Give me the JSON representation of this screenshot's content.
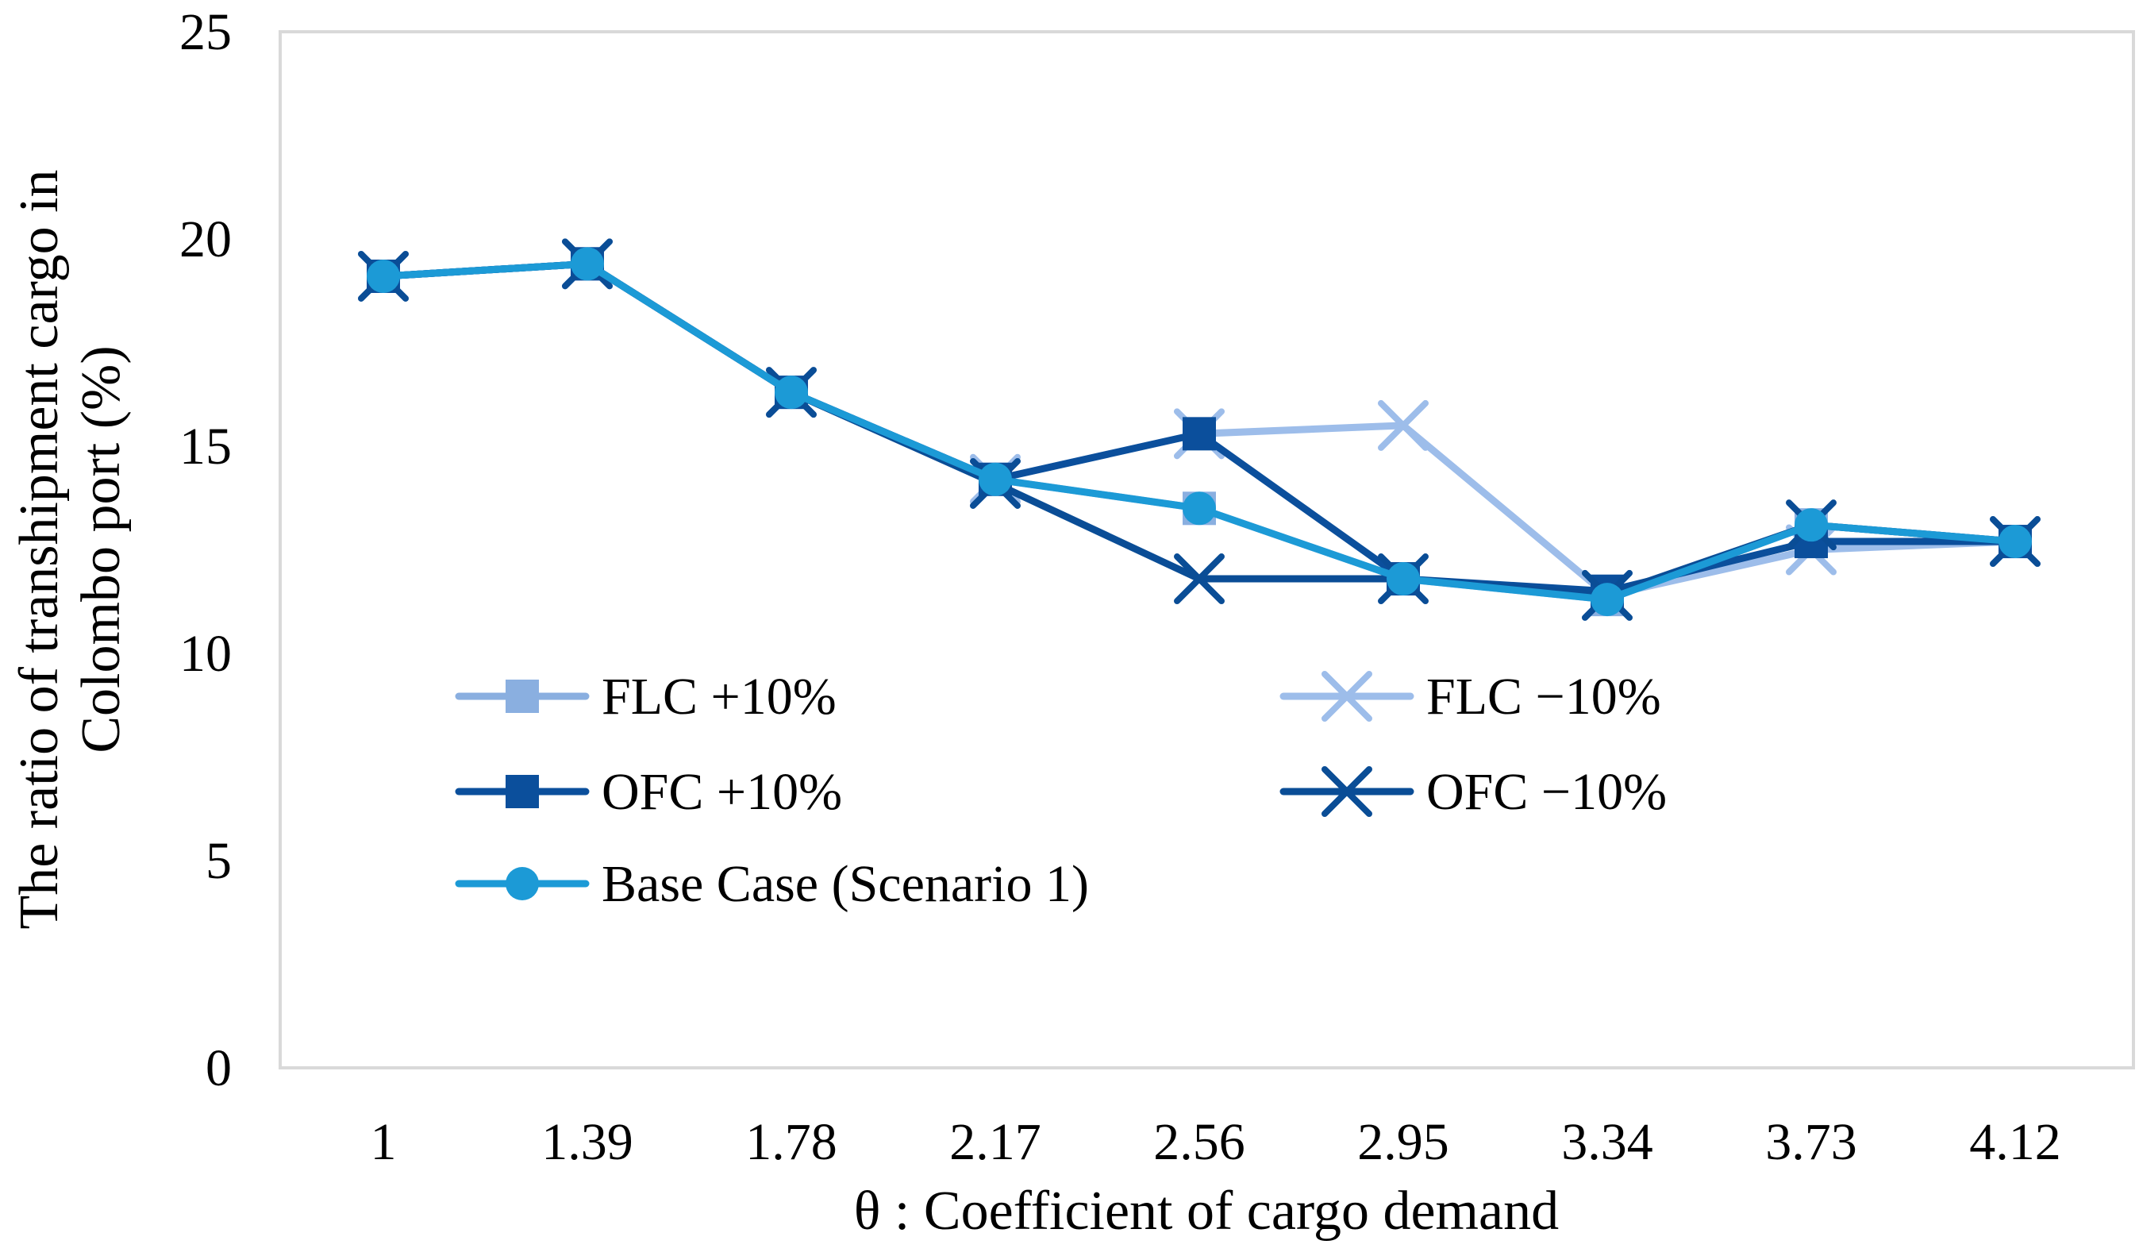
{
  "chart_data": {
    "type": "line",
    "title": "",
    "xlabel": "θ : Coefficient of cargo demand",
    "ylabel_lines": [
      "The ratio of transhipment cargo in",
      "Colombo port (%)"
    ],
    "categories": [
      "1",
      "1.39",
      "1.78",
      "2.17",
      "2.56",
      "2.95",
      "3.34",
      "3.73",
      "4.12"
    ],
    "y_ticks": [
      "0",
      "5",
      "10",
      "15",
      "20",
      "25"
    ],
    "ylim": [
      0,
      25
    ],
    "grid": false,
    "legend_position": "lower-left-inside",
    "series": [
      {
        "name": "FLC +10%",
        "marker": "square",
        "color": "#8AAFE0",
        "values": [
          19.1,
          19.4,
          16.3,
          14.2,
          13.5,
          11.8,
          11.3,
          13.1,
          12.7
        ]
      },
      {
        "name": "FLC −10%",
        "marker": "x",
        "color": "#9DBDEA",
        "values": [
          19.1,
          19.4,
          16.3,
          14.2,
          15.3,
          15.5,
          11.4,
          12.5,
          12.7
        ]
      },
      {
        "name": "OFC +10%",
        "marker": "square",
        "color": "#0B4F9C",
        "values": [
          19.1,
          19.4,
          16.3,
          14.2,
          15.3,
          11.8,
          11.5,
          12.7,
          12.7
        ]
      },
      {
        "name": "OFC −10%",
        "marker": "x",
        "color": "#0A4D96",
        "values": [
          19.1,
          19.4,
          16.3,
          14.1,
          11.8,
          11.8,
          11.4,
          13.1,
          12.7
        ]
      },
      {
        "name": "Base Case (Scenario 1)",
        "marker": "circle",
        "color": "#1C9AD6",
        "values": [
          19.1,
          19.4,
          16.3,
          14.2,
          13.5,
          11.8,
          11.3,
          13.1,
          12.7
        ]
      }
    ]
  }
}
